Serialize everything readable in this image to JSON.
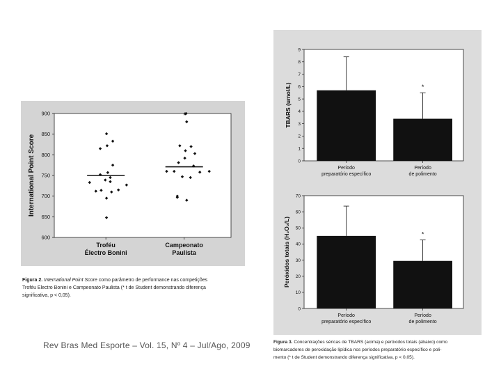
{
  "colors": {
    "figure_bg_left": "#d4d4d4",
    "figure_bg_right": "#dcdcdc",
    "bar": "#111111",
    "plot_bg": "#ffffff"
  },
  "left_caption": {
    "label": "Figura 2.",
    "text_line1_italic": "International Point Score",
    "text_line1_rest": "como parâmetro de performance nas competições",
    "text_line2": "Troféu Electro Bonini e Campeonato Paulista (* t de Student demonstrando diferença",
    "text_line3": "significativa, p < 0,05)."
  },
  "right_caption": {
    "label": "Figura 3.",
    "line1": "Concentrações séricas de TBARS (acima) e peróxidos totais (abaixo) como",
    "line2": "biomarcadores de peroxidação lipídica nos períodos preparatório específico e poli-",
    "line3": "mento (* t de Student demonstrando diferença significativa, p < 0,05)."
  },
  "footer": {
    "text": "Rev Bras Med Esporte – Vol. 15, Nº 4 – Jul/Ago, 2009"
  },
  "chart_data": [
    {
      "id": "ips-scatter",
      "type": "scatter",
      "ylabel": "International Point Score",
      "ylim": [
        600,
        900
      ],
      "yticks": [
        600,
        650,
        700,
        750,
        800,
        850,
        900
      ],
      "categories": [
        "Troféu\nElectro Bonini",
        "Campeonato\nPaulista"
      ],
      "category_labels": [
        [
          "Troféu",
          "Électro Bonini"
        ],
        [
          "Campeonato",
          "Paulista"
        ]
      ],
      "series": [
        {
          "name": "Troféu Electro Bonini",
          "mean": 750,
          "points": [
            {
              "dx": -0.52,
              "y": 733
            },
            {
              "dx": -0.32,
              "y": 712
            },
            {
              "dx": -0.15,
              "y": 714
            },
            {
              "dx": -0.18,
              "y": 752
            },
            {
              "dx": -0.18,
              "y": 815
            },
            {
              "dx": 0.02,
              "y": 851
            },
            {
              "dx": 0.04,
              "y": 822
            },
            {
              "dx": 0.22,
              "y": 833
            },
            {
              "dx": 0.22,
              "y": 775
            },
            {
              "dx": 0.06,
              "y": 757
            },
            {
              "dx": -0.02,
              "y": 739
            },
            {
              "dx": 0.14,
              "y": 745
            },
            {
              "dx": 0.14,
              "y": 735
            },
            {
              "dx": 0.02,
              "y": 695
            },
            {
              "dx": 0.18,
              "y": 710
            },
            {
              "dx": 0.4,
              "y": 715
            },
            {
              "dx": 0.66,
              "y": 727
            },
            {
              "dx": 0.02,
              "y": 648
            }
          ]
        },
        {
          "name": "Campeonato Paulista",
          "mean": 771,
          "annotation": "*",
          "points": [
            {
              "dx": 0.06,
              "y": 900
            },
            {
              "dx": 0.08,
              "y": 880
            },
            {
              "dx": -0.14,
              "y": 822
            },
            {
              "dx": 0.22,
              "y": 820
            },
            {
              "dx": 0.04,
              "y": 810
            },
            {
              "dx": 0.34,
              "y": 803
            },
            {
              "dx": -0.18,
              "y": 781
            },
            {
              "dx": 0.02,
              "y": 792
            },
            {
              "dx": 0.3,
              "y": 773
            },
            {
              "dx": -0.56,
              "y": 760
            },
            {
              "dx": -0.32,
              "y": 760
            },
            {
              "dx": 0.5,
              "y": 758
            },
            {
              "dx": 0.8,
              "y": 760
            },
            {
              "dx": -0.06,
              "y": 747
            },
            {
              "dx": 0.2,
              "y": 745
            },
            {
              "dx": -0.22,
              "y": 700
            },
            {
              "dx": -0.22,
              "y": 697
            },
            {
              "dx": 0.08,
              "y": 690
            }
          ]
        }
      ]
    },
    {
      "id": "tbars-bar",
      "type": "bar",
      "ylabel": "TBARS (umol/L)",
      "ylim": [
        0,
        9
      ],
      "yticks": [
        0,
        1,
        2,
        3,
        4,
        5,
        6,
        7,
        8,
        9
      ],
      "categories": [
        [
          "Período",
          "preparatório específico"
        ],
        [
          "Período",
          "de polimento"
        ]
      ],
      "values": [
        5.7,
        3.4
      ],
      "error_up": [
        2.7,
        2.1
      ],
      "annotations": [
        "",
        "*"
      ]
    },
    {
      "id": "peroxides-bar",
      "type": "bar",
      "ylabel": "Peróxidos totais (H₂O₂/L)",
      "ylim": [
        0,
        70
      ],
      "yticks": [
        0,
        10,
        20,
        30,
        40,
        50,
        60,
        70
      ],
      "categories": [
        [
          "Período",
          "preparatório específico"
        ],
        [
          "Período",
          "de polimento"
        ]
      ],
      "values": [
        45,
        29.5
      ],
      "error_up": [
        18.5,
        13
      ],
      "annotations": [
        "",
        "*"
      ]
    }
  ]
}
